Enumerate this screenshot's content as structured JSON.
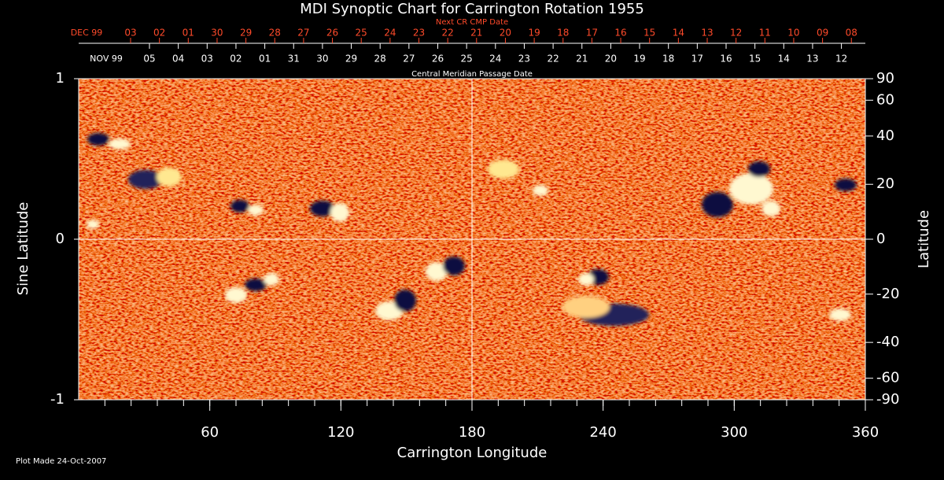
{
  "chart_data": {
    "type": "image",
    "title": "MDI Synoptic Chart for Carrington Rotation 1955",
    "x_label": "Carrington Longitude",
    "y_label": "Sine Latitude",
    "y2_label": "Latitude",
    "xlim": [
      0,
      360
    ],
    "xticks": [
      60,
      120,
      180,
      240,
      300,
      360
    ],
    "x_minor_step": 12,
    "ylim": [
      -1,
      1
    ],
    "yticks": [
      -1,
      0,
      1
    ],
    "y2lim": [
      -90,
      90
    ],
    "y2ticks": [
      90,
      60,
      40,
      20,
      0,
      -20,
      -40,
      -60,
      -90
    ],
    "y2scale": "sine",
    "center_lines": {
      "x": 180,
      "y": 0
    },
    "top_axes": [
      {
        "label": "Next CR CMP Date",
        "color": "#ff4a2a",
        "categories": [
          "DEC 99",
          "03",
          "02",
          "01",
          "30",
          "29",
          "28",
          "27",
          "26",
          "25",
          "24",
          "23",
          "22",
          "21",
          "20",
          "19",
          "18",
          "17",
          "16",
          "15",
          "14",
          "13",
          "12",
          "11",
          "10",
          "09",
          "08"
        ]
      },
      {
        "label": "Central Meridian Passage Date",
        "color": "#ffffff",
        "categories": [
          "NOV 99",
          "05",
          "04",
          "03",
          "02",
          "01",
          "31",
          "30",
          "29",
          "28",
          "27",
          "26",
          "25",
          "24",
          "23",
          "22",
          "21",
          "20",
          "19",
          "18",
          "17",
          "16",
          "15",
          "14",
          "13",
          "12"
        ]
      }
    ],
    "footer": "Plot Made 24-Oct-2007"
  }
}
